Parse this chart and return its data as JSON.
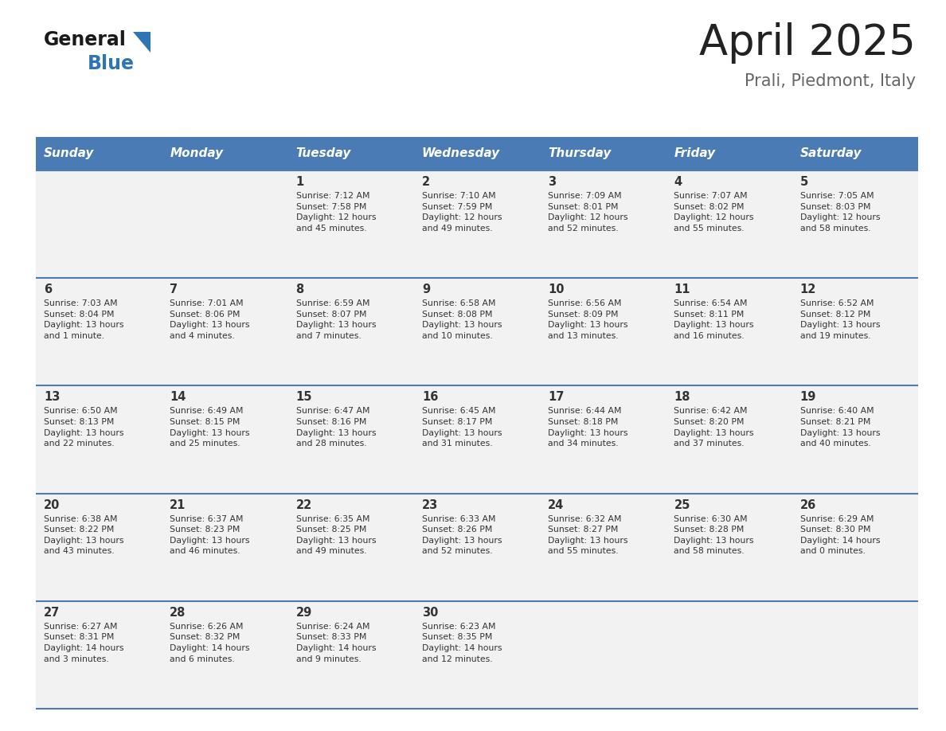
{
  "title": "April 2025",
  "subtitle": "Prali, Piedmont, Italy",
  "days_of_week": [
    "Sunday",
    "Monday",
    "Tuesday",
    "Wednesday",
    "Thursday",
    "Friday",
    "Saturday"
  ],
  "header_bg": "#4A7BB5",
  "header_text_color": "#FFFFFF",
  "row_bg": "#F2F2F2",
  "cell_text_color": "#333333",
  "border_color": "#4A7BB5",
  "title_color": "#222222",
  "subtitle_color": "#666666",
  "logo_general_color": "#1a1a1a",
  "logo_blue_color": "#2E75B6",
  "fig_width": 11.88,
  "fig_height": 9.18,
  "weeks": [
    {
      "days": [
        {
          "date": "",
          "sunrise": "",
          "sunset": "",
          "daylight": ""
        },
        {
          "date": "",
          "sunrise": "",
          "sunset": "",
          "daylight": ""
        },
        {
          "date": "1",
          "sunrise": "Sunrise: 7:12 AM",
          "sunset": "Sunset: 7:58 PM",
          "daylight": "Daylight: 12 hours\nand 45 minutes."
        },
        {
          "date": "2",
          "sunrise": "Sunrise: 7:10 AM",
          "sunset": "Sunset: 7:59 PM",
          "daylight": "Daylight: 12 hours\nand 49 minutes."
        },
        {
          "date": "3",
          "sunrise": "Sunrise: 7:09 AM",
          "sunset": "Sunset: 8:01 PM",
          "daylight": "Daylight: 12 hours\nand 52 minutes."
        },
        {
          "date": "4",
          "sunrise": "Sunrise: 7:07 AM",
          "sunset": "Sunset: 8:02 PM",
          "daylight": "Daylight: 12 hours\nand 55 minutes."
        },
        {
          "date": "5",
          "sunrise": "Sunrise: 7:05 AM",
          "sunset": "Sunset: 8:03 PM",
          "daylight": "Daylight: 12 hours\nand 58 minutes."
        }
      ]
    },
    {
      "days": [
        {
          "date": "6",
          "sunrise": "Sunrise: 7:03 AM",
          "sunset": "Sunset: 8:04 PM",
          "daylight": "Daylight: 13 hours\nand 1 minute."
        },
        {
          "date": "7",
          "sunrise": "Sunrise: 7:01 AM",
          "sunset": "Sunset: 8:06 PM",
          "daylight": "Daylight: 13 hours\nand 4 minutes."
        },
        {
          "date": "8",
          "sunrise": "Sunrise: 6:59 AM",
          "sunset": "Sunset: 8:07 PM",
          "daylight": "Daylight: 13 hours\nand 7 minutes."
        },
        {
          "date": "9",
          "sunrise": "Sunrise: 6:58 AM",
          "sunset": "Sunset: 8:08 PM",
          "daylight": "Daylight: 13 hours\nand 10 minutes."
        },
        {
          "date": "10",
          "sunrise": "Sunrise: 6:56 AM",
          "sunset": "Sunset: 8:09 PM",
          "daylight": "Daylight: 13 hours\nand 13 minutes."
        },
        {
          "date": "11",
          "sunrise": "Sunrise: 6:54 AM",
          "sunset": "Sunset: 8:11 PM",
          "daylight": "Daylight: 13 hours\nand 16 minutes."
        },
        {
          "date": "12",
          "sunrise": "Sunrise: 6:52 AM",
          "sunset": "Sunset: 8:12 PM",
          "daylight": "Daylight: 13 hours\nand 19 minutes."
        }
      ]
    },
    {
      "days": [
        {
          "date": "13",
          "sunrise": "Sunrise: 6:50 AM",
          "sunset": "Sunset: 8:13 PM",
          "daylight": "Daylight: 13 hours\nand 22 minutes."
        },
        {
          "date": "14",
          "sunrise": "Sunrise: 6:49 AM",
          "sunset": "Sunset: 8:15 PM",
          "daylight": "Daylight: 13 hours\nand 25 minutes."
        },
        {
          "date": "15",
          "sunrise": "Sunrise: 6:47 AM",
          "sunset": "Sunset: 8:16 PM",
          "daylight": "Daylight: 13 hours\nand 28 minutes."
        },
        {
          "date": "16",
          "sunrise": "Sunrise: 6:45 AM",
          "sunset": "Sunset: 8:17 PM",
          "daylight": "Daylight: 13 hours\nand 31 minutes."
        },
        {
          "date": "17",
          "sunrise": "Sunrise: 6:44 AM",
          "sunset": "Sunset: 8:18 PM",
          "daylight": "Daylight: 13 hours\nand 34 minutes."
        },
        {
          "date": "18",
          "sunrise": "Sunrise: 6:42 AM",
          "sunset": "Sunset: 8:20 PM",
          "daylight": "Daylight: 13 hours\nand 37 minutes."
        },
        {
          "date": "19",
          "sunrise": "Sunrise: 6:40 AM",
          "sunset": "Sunset: 8:21 PM",
          "daylight": "Daylight: 13 hours\nand 40 minutes."
        }
      ]
    },
    {
      "days": [
        {
          "date": "20",
          "sunrise": "Sunrise: 6:38 AM",
          "sunset": "Sunset: 8:22 PM",
          "daylight": "Daylight: 13 hours\nand 43 minutes."
        },
        {
          "date": "21",
          "sunrise": "Sunrise: 6:37 AM",
          "sunset": "Sunset: 8:23 PM",
          "daylight": "Daylight: 13 hours\nand 46 minutes."
        },
        {
          "date": "22",
          "sunrise": "Sunrise: 6:35 AM",
          "sunset": "Sunset: 8:25 PM",
          "daylight": "Daylight: 13 hours\nand 49 minutes."
        },
        {
          "date": "23",
          "sunrise": "Sunrise: 6:33 AM",
          "sunset": "Sunset: 8:26 PM",
          "daylight": "Daylight: 13 hours\nand 52 minutes."
        },
        {
          "date": "24",
          "sunrise": "Sunrise: 6:32 AM",
          "sunset": "Sunset: 8:27 PM",
          "daylight": "Daylight: 13 hours\nand 55 minutes."
        },
        {
          "date": "25",
          "sunrise": "Sunrise: 6:30 AM",
          "sunset": "Sunset: 8:28 PM",
          "daylight": "Daylight: 13 hours\nand 58 minutes."
        },
        {
          "date": "26",
          "sunrise": "Sunrise: 6:29 AM",
          "sunset": "Sunset: 8:30 PM",
          "daylight": "Daylight: 14 hours\nand 0 minutes."
        }
      ]
    },
    {
      "days": [
        {
          "date": "27",
          "sunrise": "Sunrise: 6:27 AM",
          "sunset": "Sunset: 8:31 PM",
          "daylight": "Daylight: 14 hours\nand 3 minutes."
        },
        {
          "date": "28",
          "sunrise": "Sunrise: 6:26 AM",
          "sunset": "Sunset: 8:32 PM",
          "daylight": "Daylight: 14 hours\nand 6 minutes."
        },
        {
          "date": "29",
          "sunrise": "Sunrise: 6:24 AM",
          "sunset": "Sunset: 8:33 PM",
          "daylight": "Daylight: 14 hours\nand 9 minutes."
        },
        {
          "date": "30",
          "sunrise": "Sunrise: 6:23 AM",
          "sunset": "Sunset: 8:35 PM",
          "daylight": "Daylight: 14 hours\nand 12 minutes."
        },
        {
          "date": "",
          "sunrise": "",
          "sunset": "",
          "daylight": ""
        },
        {
          "date": "",
          "sunrise": "",
          "sunset": "",
          "daylight": ""
        },
        {
          "date": "",
          "sunrise": "",
          "sunset": "",
          "daylight": ""
        }
      ]
    }
  ]
}
